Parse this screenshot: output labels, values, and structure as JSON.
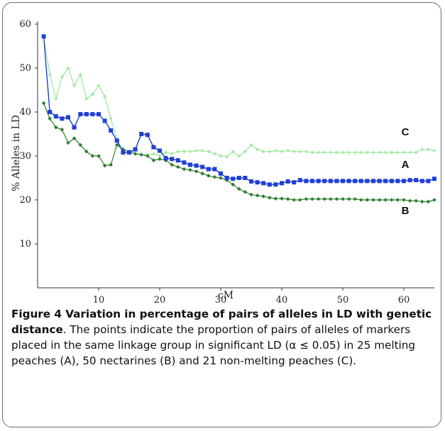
{
  "chart_data": {
    "type": "line",
    "xlabel": "cM",
    "ylabel": "% Alleles in LD",
    "xlim": [
      0,
      65
    ],
    "ylim": [
      0,
      60
    ],
    "x_ticks": [
      "10",
      "20",
      "30",
      "40",
      "50",
      "60"
    ],
    "y_ticks": [
      "10",
      "20",
      "30",
      "40",
      "50",
      "60"
    ],
    "grid": false,
    "series": [
      {
        "name": "A",
        "color": "#1f3fd6",
        "marker": "square",
        "x": [
          1,
          2,
          3,
          4,
          5,
          6,
          7,
          8,
          9,
          10,
          11,
          12,
          13,
          14,
          15,
          16,
          17,
          18,
          19,
          20,
          21,
          22,
          23,
          24,
          25,
          26,
          27,
          28,
          29,
          30,
          31,
          32,
          33,
          34,
          35,
          36,
          37,
          38,
          39,
          40,
          41,
          42,
          43,
          44,
          45,
          46,
          47,
          48,
          49,
          50,
          51,
          52,
          53,
          54,
          55,
          56,
          57,
          58,
          59,
          60,
          61,
          62,
          63,
          64,
          65
        ],
        "y": [
          57.2,
          40.0,
          39.0,
          38.5,
          38.8,
          36.5,
          39.5,
          39.5,
          39.5,
          39.5,
          38.0,
          35.8,
          33.5,
          30.8,
          30.8,
          31.5,
          35.0,
          34.8,
          32.0,
          31.2,
          29.5,
          29.3,
          29.0,
          28.5,
          28.0,
          27.8,
          27.5,
          27.0,
          27.0,
          26.0,
          25.0,
          24.8,
          25.0,
          25.0,
          24.2,
          24.0,
          23.8,
          23.5,
          23.5,
          23.8,
          24.2,
          24.0,
          24.5,
          24.3,
          24.3,
          24.3,
          24.3,
          24.3,
          24.3,
          24.3,
          24.3,
          24.3,
          24.3,
          24.3,
          24.3,
          24.3,
          24.3,
          24.3,
          24.3,
          24.3,
          24.5,
          24.5,
          24.3,
          24.3,
          24.8
        ]
      },
      {
        "name": "B",
        "color": "#2e7d2e",
        "marker": "diamond",
        "x": [
          1,
          2,
          3,
          4,
          5,
          6,
          7,
          8,
          9,
          10,
          11,
          12,
          13,
          14,
          15,
          16,
          17,
          18,
          19,
          20,
          21,
          22,
          23,
          24,
          25,
          26,
          27,
          28,
          29,
          30,
          31,
          32,
          33,
          34,
          35,
          36,
          37,
          38,
          39,
          40,
          41,
          42,
          43,
          44,
          45,
          46,
          47,
          48,
          49,
          50,
          51,
          52,
          53,
          54,
          55,
          56,
          57,
          58,
          59,
          60,
          61,
          62,
          63,
          64,
          65
        ],
        "y": [
          42.0,
          38.5,
          36.5,
          36.0,
          33.0,
          34.0,
          32.5,
          31.0,
          30.0,
          30.0,
          27.8,
          28.0,
          32.5,
          31.5,
          31.0,
          30.5,
          30.3,
          30.0,
          29.0,
          29.3,
          29.0,
          28.0,
          27.5,
          27.0,
          26.8,
          26.5,
          26.0,
          25.5,
          25.2,
          25.0,
          24.5,
          23.5,
          22.5,
          21.8,
          21.2,
          21.0,
          20.8,
          20.5,
          20.3,
          20.3,
          20.2,
          20.0,
          20.0,
          20.2,
          20.2,
          20.2,
          20.2,
          20.2,
          20.2,
          20.2,
          20.2,
          20.2,
          20.0,
          20.0,
          20.0,
          20.0,
          20.0,
          20.0,
          20.0,
          20.0,
          19.8,
          19.8,
          19.6,
          19.6,
          20.0
        ]
      },
      {
        "name": "C",
        "color": "#9be89b",
        "marker": "star",
        "x": [
          1,
          2,
          3,
          4,
          5,
          6,
          7,
          8,
          9,
          10,
          11,
          12,
          13,
          14,
          15,
          16,
          17,
          18,
          19,
          20,
          21,
          22,
          23,
          24,
          25,
          26,
          27,
          28,
          29,
          30,
          31,
          32,
          33,
          34,
          35,
          36,
          37,
          38,
          39,
          40,
          41,
          42,
          43,
          44,
          45,
          46,
          47,
          48,
          49,
          50,
          51,
          52,
          53,
          54,
          55,
          56,
          57,
          58,
          59,
          60,
          61,
          62,
          63,
          64,
          65
        ],
        "y": [
          57.0,
          48.5,
          43.0,
          48.0,
          50.0,
          46.0,
          48.5,
          43.0,
          44.0,
          46.0,
          43.5,
          38.5,
          33.5,
          31.5,
          31.0,
          30.5,
          30.3,
          30.3,
          30.5,
          30.0,
          30.8,
          30.5,
          31.0,
          31.0,
          31.0,
          31.2,
          31.2,
          31.0,
          30.5,
          30.0,
          29.8,
          31.0,
          30.0,
          31.0,
          32.5,
          31.5,
          31.0,
          31.0,
          31.2,
          31.0,
          31.2,
          31.0,
          31.0,
          31.0,
          30.8,
          30.8,
          30.8,
          30.8,
          30.8,
          30.8,
          30.8,
          30.8,
          30.8,
          30.8,
          30.8,
          30.8,
          30.8,
          30.8,
          30.8,
          30.8,
          30.8,
          30.8,
          31.5,
          31.5,
          31.2
        ]
      }
    ]
  },
  "caption": {
    "bold": "Figure 4 Variation in percentage of pairs of alleles in LD with genetic distance",
    "rest": ". The points indicate the proportion of pairs of alleles of markers placed in the same linkage group in significant LD (α ≤ 0.05) in 25 melting peaches (A), 50 nectarines (B) and 21 non-melting peaches (C)."
  }
}
